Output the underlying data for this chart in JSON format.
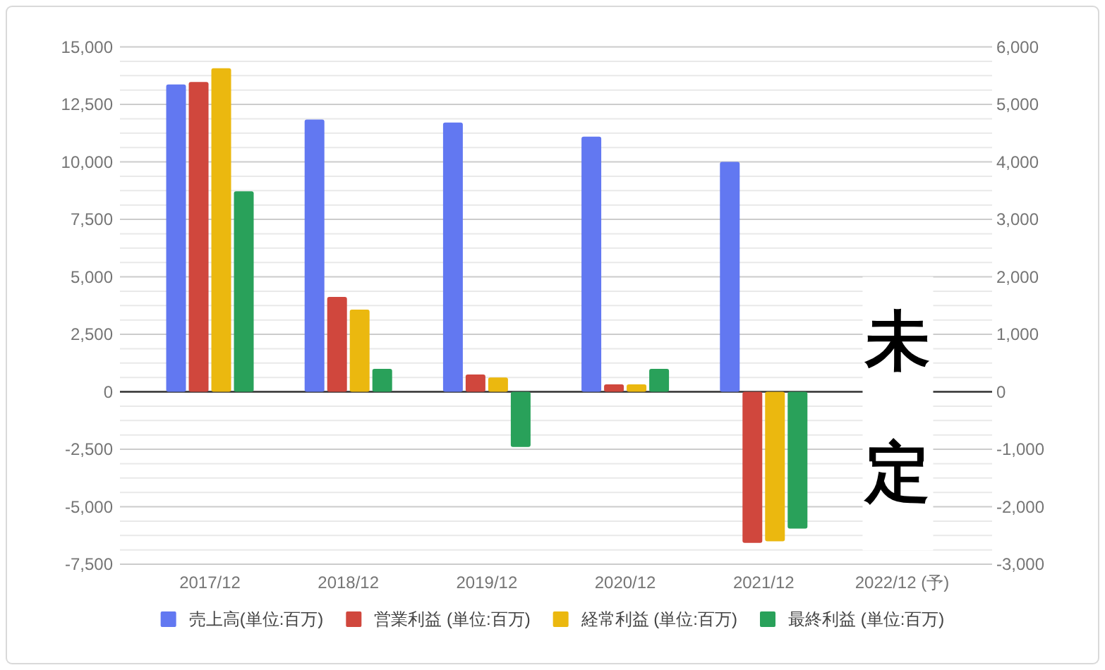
{
  "chart_data": {
    "type": "bar",
    "categories": [
      "2017/12",
      "2018/12",
      "2019/12",
      "2020/12",
      "2021/12",
      "2022/12 (予)"
    ],
    "series": [
      {
        "name": "売上高(単位:百万)",
        "color": "#6278f1",
        "values": [
          13370,
          11840,
          11710,
          11100,
          10000,
          null
        ]
      },
      {
        "name": "営業利益 (単位:百万)",
        "color": "#d0473d",
        "axis": "y2",
        "values": [
          5390,
          1650,
          300,
          130,
          -2630,
          null
        ]
      },
      {
        "name": "経常利益 (単位:百万)",
        "color": "#ebb80f",
        "axis": "y2",
        "values": [
          5630,
          1430,
          250,
          130,
          -2600,
          null
        ]
      },
      {
        "name": "最終利益 (単位:百万)",
        "color": "#29a15a",
        "axis": "y2",
        "values": [
          3490,
          400,
          -960,
          400,
          -2380,
          null
        ]
      }
    ],
    "ylim": [
      -7500,
      15000
    ],
    "yticks": [
      {
        "value": -7500,
        "label": "-7,500"
      },
      {
        "value": -6875,
        "label": null
      },
      {
        "value": -6250,
        "label": null
      },
      {
        "value": -5625,
        "label": null
      },
      {
        "value": -5000,
        "label": "-5,000"
      },
      {
        "value": -4375,
        "label": null
      },
      {
        "value": -3750,
        "label": null
      },
      {
        "value": -3125,
        "label": null
      },
      {
        "value": -2500,
        "label": "-2,500"
      },
      {
        "value": -1875,
        "label": null
      },
      {
        "value": -1250,
        "label": null
      },
      {
        "value": -625,
        "label": null
      },
      0,
      {
        "value": 625,
        "label": null
      },
      {
        "value": 1250,
        "label": null
      },
      {
        "value": 1875,
        "label": null
      },
      {
        "value": 2500,
        "label": "2,500"
      },
      {
        "value": 3125,
        "label": null
      },
      {
        "value": 3750,
        "label": null
      },
      {
        "value": 4375,
        "label": null
      },
      {
        "value": 5000,
        "label": "5,000"
      },
      {
        "value": 5625,
        "label": null
      },
      {
        "value": 6250,
        "label": null
      },
      {
        "value": 6875,
        "label": null
      },
      {
        "value": 7500,
        "label": "7,500"
      },
      {
        "value": 8125,
        "label": null
      },
      {
        "value": 8750,
        "label": null
      },
      {
        "value": 9375,
        "label": null
      },
      {
        "value": 10000,
        "label": "10,000"
      },
      {
        "value": 10625,
        "label": null
      },
      {
        "value": 11250,
        "label": null
      },
      {
        "value": 11875,
        "label": null
      },
      {
        "value": 12500,
        "label": "12,500"
      },
      {
        "value": 13125,
        "label": null
      },
      {
        "value": 13750,
        "label": null
      },
      {
        "value": 14375,
        "label": null
      },
      {
        "value": 15000,
        "label": "15,000"
      }
    ],
    "y2lim": [
      -3000,
      6000
    ],
    "y2ticks": [
      {
        "value": -3000,
        "label": "-3,000"
      },
      {
        "value": -2000,
        "label": "-2,000"
      },
      {
        "value": -1000,
        "label": "-1,000"
      },
      0,
      {
        "value": 1000,
        "label": "1,000"
      },
      {
        "value": 2000,
        "label": "2,000"
      },
      {
        "value": 3000,
        "label": "3,000"
      },
      {
        "value": 4000,
        "label": "4,000"
      },
      {
        "value": 5000,
        "label": "5,000"
      },
      {
        "value": 6000,
        "label": "6,000"
      }
    ],
    "grid": "y",
    "legend": "bottom",
    "ref_lines": [
      {
        "axis": "y",
        "value": 0,
        "color": "#333333"
      }
    ],
    "annotations": [
      "未定"
    ]
  }
}
